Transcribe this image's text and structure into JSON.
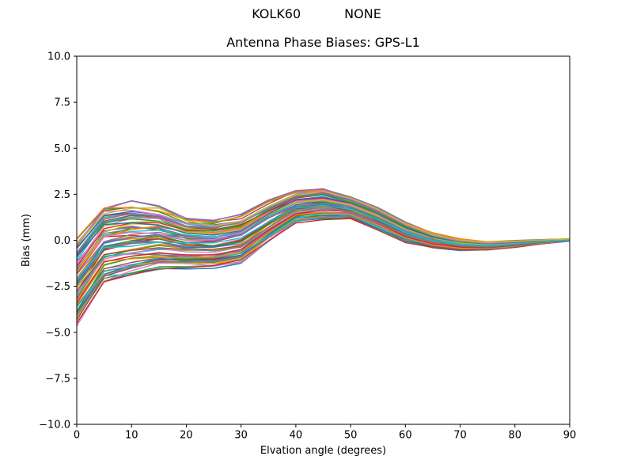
{
  "header": {
    "station_label": "KOLK60",
    "right_label": "NONE"
  },
  "chart_data": {
    "type": "line",
    "title": "Antenna Phase Biases: GPS-L1",
    "xlabel": "Elvation angle (degrees)",
    "ylabel": "Bias (mm)",
    "xlim": [
      0,
      90
    ],
    "ylim": [
      -10,
      10
    ],
    "grid": false,
    "legend": "none",
    "xticks": {
      "values": [
        0,
        10,
        20,
        30,
        40,
        50,
        60,
        70,
        80,
        90
      ],
      "labels": [
        "0",
        "10",
        "20",
        "30",
        "40",
        "50",
        "60",
        "70",
        "80",
        "90"
      ]
    },
    "yticks": {
      "values": [
        10,
        7.5,
        5,
        2.5,
        0,
        -2.5,
        -5,
        -7.5,
        -10
      ],
      "labels": [
        "10.0",
        "7.5",
        "5.0",
        "2.5",
        "0.0",
        "−2.5",
        "−5.0",
        "−7.5",
        "−10.0"
      ]
    },
    "x": [
      0,
      5,
      10,
      15,
      20,
      25,
      30,
      35,
      40,
      45,
      50,
      55,
      60,
      65,
      70,
      75,
      80,
      85,
      90
    ],
    "ensemble": {
      "n_lines": 70,
      "lower_envelope": [
        -4.9,
        -2.6,
        -2.25,
        -1.85,
        -1.7,
        -1.65,
        -1.4,
        -0.25,
        0.85,
        1.05,
        1.1,
        0.45,
        -0.2,
        -0.45,
        -0.58,
        -0.55,
        -0.4,
        -0.2,
        -0.05
      ],
      "upper_envelope": [
        0.35,
        2.05,
        2.3,
        2.05,
        1.35,
        1.2,
        1.5,
        2.25,
        2.8,
        2.9,
        2.4,
        1.8,
        1.05,
        0.45,
        0.1,
        -0.05,
        0.0,
        0.05,
        0.08
      ]
    },
    "colors": [
      "#1f77b4",
      "#ff7f0e",
      "#2ca02c",
      "#d62728",
      "#9467bd",
      "#8c564b",
      "#e377c2",
      "#7f7f7f",
      "#bcbd22",
      "#17becf"
    ],
    "line_width": 1.4,
    "axis_color": "#000000"
  }
}
